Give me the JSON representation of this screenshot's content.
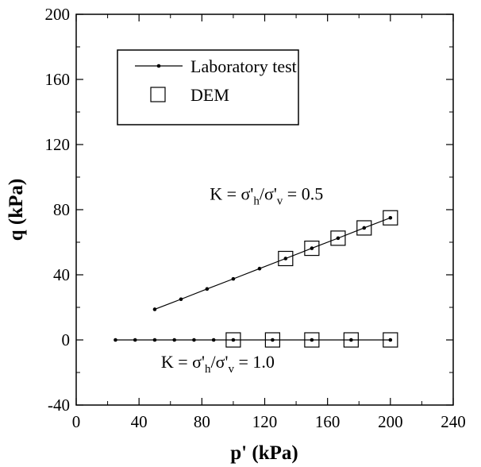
{
  "chart_data": {
    "type": "line",
    "xlabel": "p' (kPa)",
    "ylabel": "q (kPa)",
    "xlim": [
      0,
      240
    ],
    "ylim": [
      -40,
      200
    ],
    "xticks": [
      "0",
      "40",
      "80",
      "120",
      "160",
      "200",
      "240"
    ],
    "yticks": [
      "-40",
      "0",
      "40",
      "80",
      "120",
      "160",
      "200"
    ],
    "legend_position": "top-left",
    "grid": false,
    "legend": {
      "lab_label": "Laboratory test",
      "dem_label": "DEM"
    },
    "series": [
      {
        "name": "Laboratory test",
        "group": "K=0.5",
        "marker": "dot-line",
        "x": [
          50,
          66.7,
          83.3,
          100,
          116.7,
          133.3,
          150,
          166.7,
          183.3,
          200
        ],
        "y": [
          18.8,
          25,
          31.3,
          37.5,
          43.8,
          50,
          56.3,
          62.5,
          68.8,
          75
        ]
      },
      {
        "name": "Laboratory test",
        "group": "K=1.0",
        "marker": "dot-line",
        "x": [
          25,
          37.5,
          50,
          62.5,
          75,
          87.5,
          100,
          125,
          150,
          175,
          200
        ],
        "y": [
          0,
          0,
          0,
          0,
          0,
          0,
          0,
          0,
          0,
          0,
          0
        ]
      },
      {
        "name": "DEM",
        "group": "K=0.5",
        "marker": "open-square",
        "x": [
          133.3,
          150,
          166.7,
          183.3,
          200
        ],
        "y": [
          50,
          56.3,
          62.5,
          68.8,
          75
        ]
      },
      {
        "name": "DEM",
        "group": "K=1.0",
        "marker": "open-square",
        "x": [
          100,
          125,
          150,
          175,
          200
        ],
        "y": [
          0,
          0,
          0,
          0,
          0
        ]
      }
    ],
    "annotations": [
      {
        "prefix": "K = σ'",
        "sub1": "h",
        "mid": "/σ'",
        "sub2": "v",
        "suffix": " = 0.5",
        "x": 85,
        "y": 86
      },
      {
        "prefix": "K = σ'",
        "sub1": "h",
        "mid": "/σ'",
        "sub2": "v",
        "suffix": " = 1.0",
        "x": 54,
        "y": -17
      }
    ]
  }
}
